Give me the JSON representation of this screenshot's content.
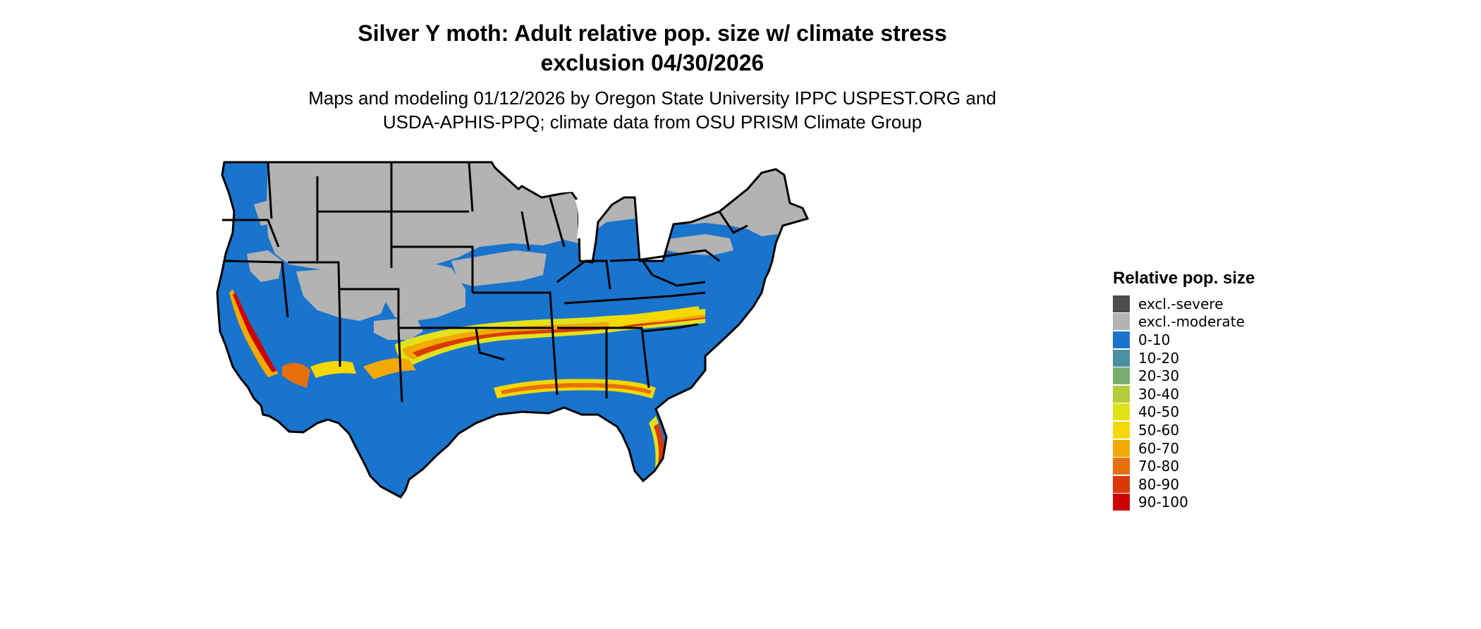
{
  "title": {
    "line1": "Silver Y moth: Adult relative pop. size w/ climate stress",
    "line2": "exclusion 04/30/2026"
  },
  "subtitle": {
    "line1": "Maps and modeling 01/12/2026 by Oregon State University IPPC USPEST.ORG and",
    "line2": "USDA-APHIS-PPQ; climate data from OSU PRISM Climate Group"
  },
  "legend": {
    "title": "Relative pop. size",
    "items": [
      {
        "label": "excl.-severe",
        "color": "#4d4d4d"
      },
      {
        "label": "excl.-moderate",
        "color": "#b3b3b3"
      },
      {
        "label": "0-10",
        "color": "#1874cd"
      },
      {
        "label": "10-20",
        "color": "#4a8fa3"
      },
      {
        "label": "20-30",
        "color": "#7aab6f"
      },
      {
        "label": "30-40",
        "color": "#b5cc3c"
      },
      {
        "label": "40-50",
        "color": "#e2e21a"
      },
      {
        "label": "50-60",
        "color": "#f5d800"
      },
      {
        "label": "60-70",
        "color": "#f2a900"
      },
      {
        "label": "70-80",
        "color": "#e8700a"
      },
      {
        "label": "80-90",
        "color": "#d93a00"
      },
      {
        "label": "90-100",
        "color": "#cc0000"
      }
    ]
  },
  "map": {
    "region": "contiguous-united-states",
    "colors": {
      "excluded": "#b3b3b3",
      "low": "#1874cd",
      "border": "#000000"
    }
  }
}
